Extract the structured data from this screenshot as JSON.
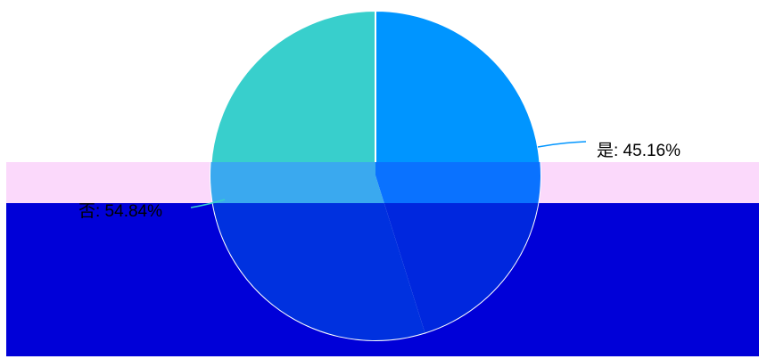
{
  "chart_data": {
    "type": "pie",
    "categories": [
      "是",
      "否"
    ],
    "values": [
      45.16,
      54.84
    ],
    "labels": [
      "是: 45.16%",
      "否: 54.84%"
    ],
    "colors": [
      "#0095ff",
      "#38cfcc"
    ]
  },
  "overlay_colors": {
    "pink_band": "#fbd9fb",
    "blue_band": "#0000d8"
  }
}
